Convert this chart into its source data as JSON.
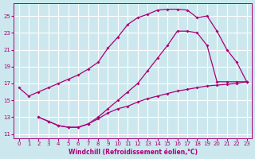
{
  "xlabel": "Windchill (Refroidissement éolien,°C)",
  "bg_color": "#cce8ee",
  "grid_color": "#b0d8e0",
  "line_color": "#aa0077",
  "xlim": [
    -0.5,
    23.5
  ],
  "ylim": [
    10.5,
    26.5
  ],
  "xticks": [
    0,
    1,
    2,
    3,
    4,
    5,
    6,
    7,
    8,
    9,
    10,
    11,
    12,
    13,
    14,
    15,
    16,
    17,
    18,
    19,
    20,
    21,
    22,
    23
  ],
  "yticks": [
    11,
    13,
    15,
    17,
    19,
    21,
    23,
    25
  ],
  "curve1_x": [
    0,
    1,
    2,
    3,
    4,
    5,
    6,
    7,
    8,
    9,
    10,
    11,
    12,
    13,
    14,
    15,
    16,
    17,
    18,
    19,
    20,
    21,
    22,
    23
  ],
  "curve1_y": [
    16.5,
    15.5,
    16.0,
    16.5,
    17.0,
    17.5,
    18.0,
    18.7,
    19.5,
    21.2,
    22.5,
    24.0,
    24.8,
    25.2,
    25.7,
    25.8,
    25.8,
    25.7,
    24.8,
    25.0,
    23.2,
    21.0,
    19.5,
    17.2
  ],
  "curve2_x": [
    2,
    3,
    4,
    5,
    6,
    7,
    8,
    9,
    10,
    11,
    12,
    13,
    14,
    15,
    16,
    17,
    18,
    19,
    20,
    21,
    22,
    23
  ],
  "curve2_y": [
    13.0,
    12.5,
    12.0,
    11.8,
    11.8,
    12.2,
    13.0,
    14.0,
    15.0,
    16.0,
    17.0,
    18.5,
    20.0,
    21.5,
    23.2,
    23.2,
    23.0,
    21.5,
    17.2,
    17.2,
    17.2,
    17.2
  ],
  "curve3_x": [
    2,
    3,
    4,
    5,
    6,
    7,
    8,
    9,
    10,
    11,
    12,
    13,
    14,
    15,
    16,
    17,
    18,
    19,
    20,
    21,
    22,
    23
  ],
  "curve3_y": [
    13.0,
    12.5,
    12.0,
    11.8,
    11.8,
    12.2,
    12.8,
    13.5,
    14.0,
    14.3,
    14.8,
    15.2,
    15.5,
    15.8,
    16.1,
    16.3,
    16.5,
    16.7,
    16.8,
    16.9,
    17.0,
    17.2
  ]
}
